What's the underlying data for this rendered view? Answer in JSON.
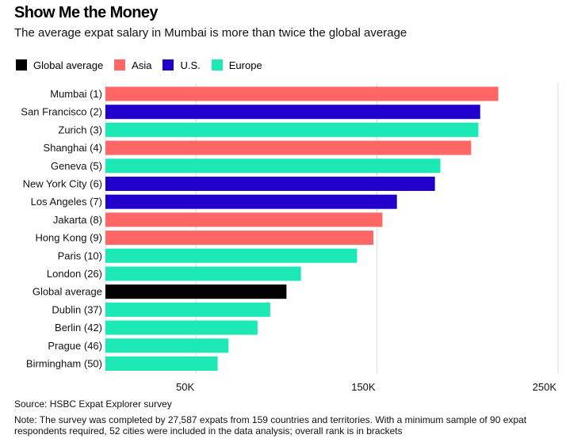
{
  "header": {
    "title": "Show Me the Money",
    "subtitle": "The average expat salary in Mumbai is more than twice the global average"
  },
  "legend": [
    {
      "label": "Global average",
      "color": "#000000"
    },
    {
      "label": "Asia",
      "color": "#ff6666"
    },
    {
      "label": "U.S.",
      "color": "#2200cc"
    },
    {
      "label": "Europe",
      "color": "#1de9b6"
    }
  ],
  "chart_data": {
    "type": "bar",
    "orientation": "horizontal",
    "xlim": [
      0,
      250000
    ],
    "xticks": [
      50000,
      150000,
      250000
    ],
    "xtick_labels": [
      "50K",
      "150K",
      "250K"
    ],
    "grid": true,
    "legend_position": "top-left",
    "categories": [
      "Mumbai (1)",
      "San Francisco (2)",
      "Zurich (3)",
      "Shanghai (4)",
      "Geneva (5)",
      "New York City (6)",
      "Los Angeles (7)",
      "Jakarta (8)",
      "Hong Kong (9)",
      "Paris (10)",
      "London (26)",
      "Global average",
      "Dublin (37)",
      "Berlin (42)",
      "Prague (46)",
      "Birmingham (50)"
    ],
    "values": [
      217000,
      207000,
      206000,
      202000,
      185000,
      182000,
      161000,
      153000,
      148000,
      139000,
      108000,
      100000,
      91000,
      84000,
      68000,
      62000
    ],
    "groups": [
      "Asia",
      "U.S.",
      "Europe",
      "Asia",
      "Europe",
      "U.S.",
      "U.S.",
      "Asia",
      "Asia",
      "Europe",
      "Europe",
      "Global average",
      "Europe",
      "Europe",
      "Europe",
      "Europe"
    ]
  },
  "footer": {
    "source": "Source: HSBC Expat Explorer survey",
    "note": "Note: The survey was completed by 27,587 expats from 159 countries and territories. With a minimum sample of 90 expat respondents required, 52 cities were included in the data analysis; overall rank is in brackets"
  }
}
